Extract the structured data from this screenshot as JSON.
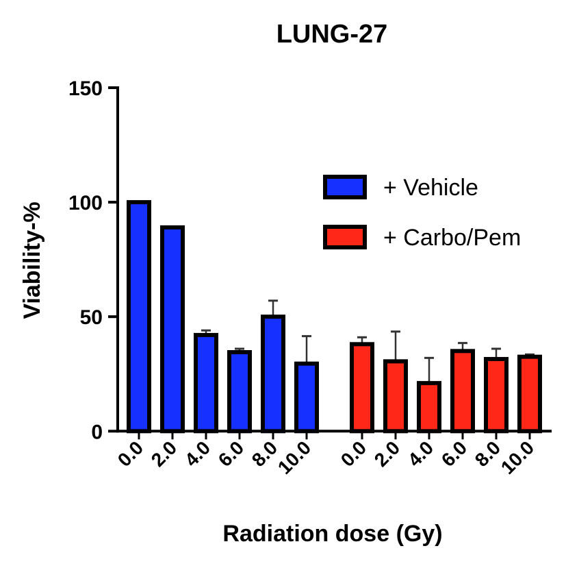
{
  "chart_data": {
    "type": "bar",
    "title": "LUNG-27",
    "xlabel": "Radiation dose (Gy)",
    "ylabel": "Viability-%",
    "ylim": [
      0,
      150
    ],
    "yticks": [
      "0",
      "50",
      "100",
      "150"
    ],
    "categories": [
      "0.0",
      "2.0",
      "4.0",
      "6.0",
      "8.0",
      "10.0"
    ],
    "legend_position": "right",
    "series": [
      {
        "name": "+ Vehicle",
        "color": "#1630ff",
        "values": [
          100,
          89,
          42,
          34.5,
          50,
          29.5
        ],
        "error": [
          0,
          0,
          2,
          1.5,
          7,
          12
        ]
      },
      {
        "name": "+ Carbo/Pem",
        "color": "#ff2818",
        "values": [
          38,
          30.5,
          21,
          35,
          31.5,
          32.5
        ],
        "error": [
          3,
          13,
          11,
          3.5,
          4.5,
          1
        ]
      }
    ]
  }
}
